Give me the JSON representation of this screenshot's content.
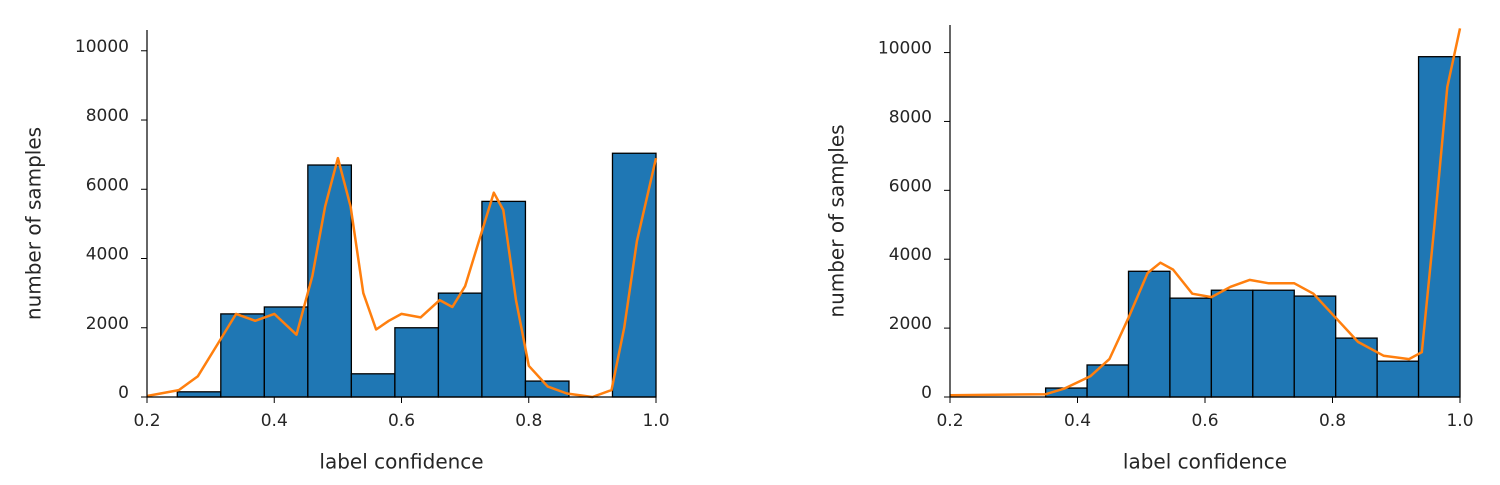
{
  "chart_data": [
    {
      "type": "histogram",
      "xlabel": "label confidence",
      "ylabel": "number of samples",
      "bins": [
        0.2476,
        0.316,
        0.3844,
        0.4528,
        0.5212,
        0.5896,
        0.658,
        0.7264,
        0.7948,
        0.8632,
        0.9316,
        1.0
      ],
      "values": [
        150,
        2400,
        2600,
        6700,
        670,
        2000,
        3000,
        5650,
        460,
        0,
        7040
      ],
      "color": "#1f77b4",
      "line": {
        "color": "#ff7f0e",
        "x": [
          0.2,
          0.25,
          0.28,
          0.31,
          0.34,
          0.37,
          0.4,
          0.435,
          0.46,
          0.48,
          0.5,
          0.52,
          0.54,
          0.56,
          0.58,
          0.6,
          0.63,
          0.66,
          0.68,
          0.7,
          0.73,
          0.745,
          0.76,
          0.78,
          0.8,
          0.83,
          0.86,
          0.9,
          0.93,
          0.95,
          0.97,
          1.0
        ],
        "values": [
          30,
          200,
          600,
          1500,
          2400,
          2200,
          2400,
          1800,
          3500,
          5500,
          6900,
          5500,
          3000,
          1950,
          2200,
          2400,
          2300,
          2800,
          2600,
          3200,
          5000,
          5900,
          5400,
          2800,
          900,
          300,
          100,
          0,
          200,
          2000,
          4500,
          6900
        ]
      },
      "xlim": [
        0.2,
        1.0
      ],
      "xticks": [
        0.2,
        0.4,
        0.6,
        0.8,
        {
          "value": 1.0,
          "label": "1.0"
        }
      ],
      "ylim": [
        0,
        10600
      ],
      "yticks": [
        0,
        2000,
        4000,
        6000,
        8000,
        10000
      ]
    },
    {
      "type": "histogram",
      "xlabel": "label confidence",
      "ylabel": "number of samples",
      "bins": [
        0.35,
        0.415,
        0.48,
        0.545,
        0.61,
        0.675,
        0.74,
        0.805,
        0.87,
        0.935,
        1.0
      ],
      "values": [
        260,
        930,
        3650,
        2870,
        3100,
        3100,
        2930,
        1710,
        1040,
        9880
      ],
      "color": "#1f77b4",
      "line": {
        "color": "#ff7f0e",
        "x": [
          0.2,
          0.35,
          0.38,
          0.42,
          0.45,
          0.48,
          0.51,
          0.53,
          0.55,
          0.58,
          0.61,
          0.64,
          0.67,
          0.7,
          0.74,
          0.77,
          0.8,
          0.84,
          0.88,
          0.92,
          0.94,
          0.96,
          0.98,
          1.0
        ],
        "values": [
          50,
          80,
          250,
          600,
          1100,
          2300,
          3600,
          3900,
          3700,
          3000,
          2900,
          3200,
          3400,
          3300,
          3300,
          3000,
          2400,
          1600,
          1200,
          1100,
          1300,
          5000,
          9000,
          10700
        ]
      },
      "xlim": [
        0.2,
        1.0
      ],
      "xticks": [
        0.2,
        0.4,
        0.6,
        0.8,
        {
          "value": 1.0,
          "label": "1.0"
        }
      ],
      "ylim": [
        0,
        10800
      ],
      "yticks": [
        0,
        2000,
        4000,
        6000,
        8000,
        10000
      ]
    }
  ]
}
